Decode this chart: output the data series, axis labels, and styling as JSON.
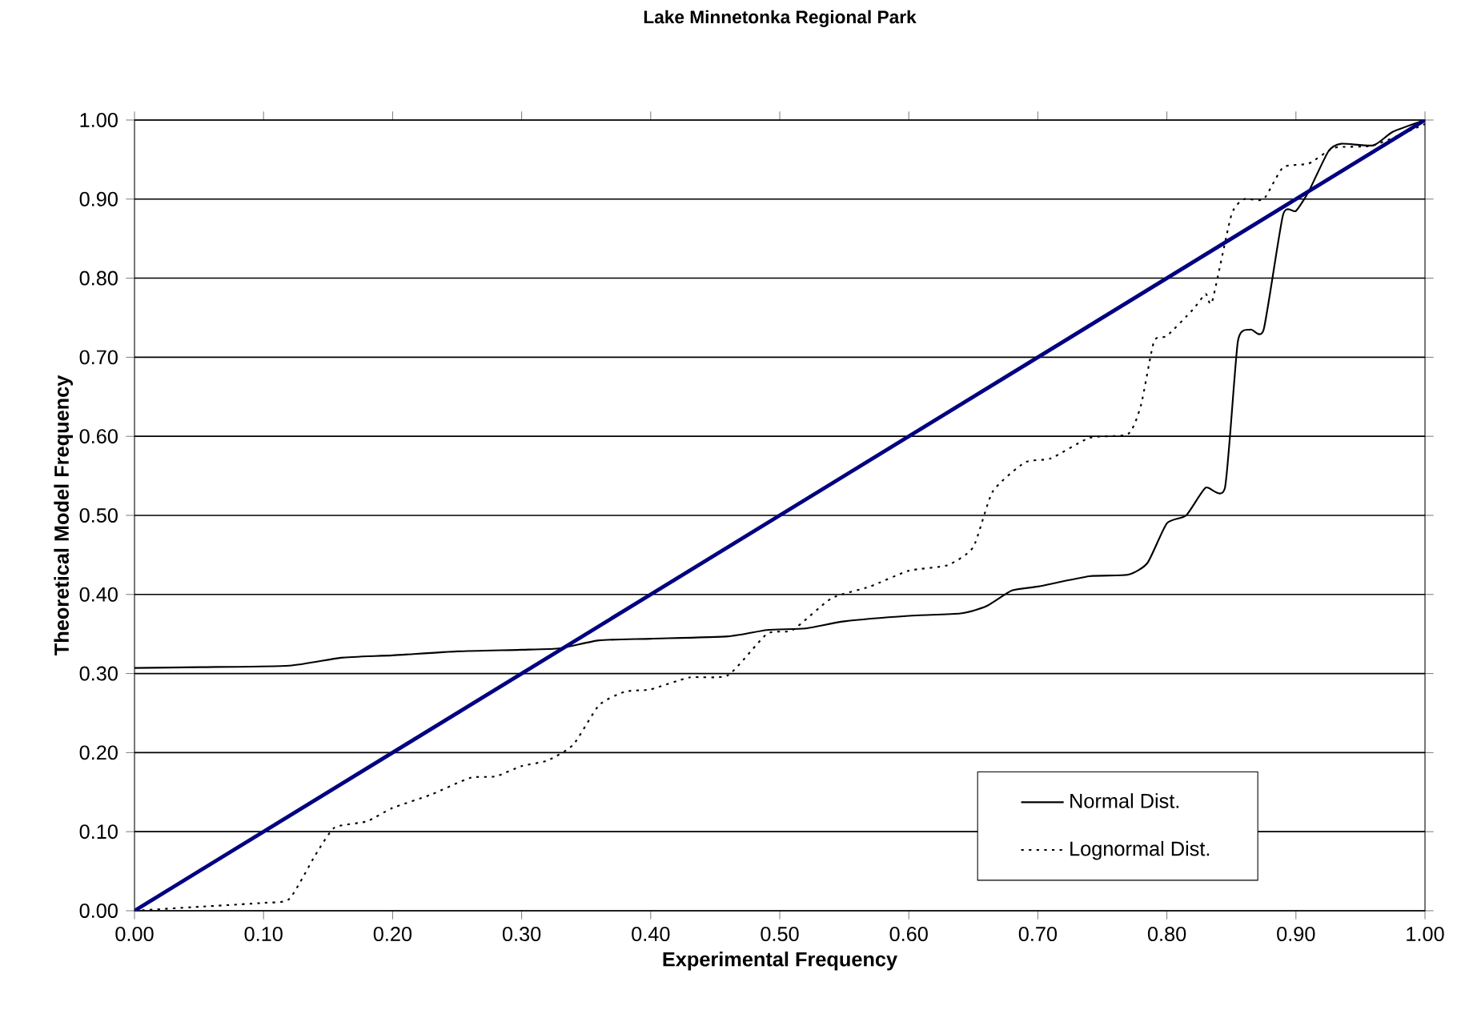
{
  "chart_data": {
    "type": "line",
    "title": "Lake Minnetonka Regional Park",
    "xlabel": "Experimental Frequency",
    "ylabel": "Theoretical Model Frequency",
    "xlim": [
      0,
      1
    ],
    "ylim": [
      0,
      1
    ],
    "xticks": [
      {
        "value": 0,
        "label": "0.00"
      },
      {
        "value": 0.1,
        "label": "0.10"
      },
      {
        "value": 0.2,
        "label": "0.20"
      },
      {
        "value": 0.3,
        "label": "0.30"
      },
      {
        "value": 0.4,
        "label": "0.40"
      },
      {
        "value": 0.5,
        "label": "0.50"
      },
      {
        "value": 0.6,
        "label": "0.60"
      },
      {
        "value": 0.7,
        "label": "0.70"
      },
      {
        "value": 0.8,
        "label": "0.80"
      },
      {
        "value": 0.9,
        "label": "0.90"
      },
      {
        "value": 1,
        "label": "1.00"
      }
    ],
    "yticks": [
      {
        "value": 0,
        "label": "0.00"
      },
      {
        "value": 0.1,
        "label": "0.10"
      },
      {
        "value": 0.2,
        "label": "0.20"
      },
      {
        "value": 0.3,
        "label": "0.30"
      },
      {
        "value": 0.4,
        "label": "0.40"
      },
      {
        "value": 0.5,
        "label": "0.50"
      },
      {
        "value": 0.6,
        "label": "0.60"
      },
      {
        "value": 0.7,
        "label": "0.70"
      },
      {
        "value": 0.8,
        "label": "0.80"
      },
      {
        "value": 0.9,
        "label": "0.90"
      },
      {
        "value": 1,
        "label": "1.00"
      }
    ],
    "grid": "y",
    "legend": "bottom right",
    "marker": "none",
    "series": [
      {
        "name": "Normal Dist.",
        "color": "#000000",
        "line_style": "solid",
        "x": [
          0,
          0.05,
          0.12,
          0.16,
          0.2,
          0.25,
          0.3,
          0.33,
          0.36,
          0.4,
          0.46,
          0.49,
          0.52,
          0.55,
          0.6,
          0.64,
          0.66,
          0.68,
          0.7,
          0.74,
          0.77,
          0.785,
          0.8,
          0.815,
          0.83,
          0.845,
          0.855,
          0.865,
          0.875,
          0.89,
          0.9,
          0.91,
          0.925,
          0.935,
          0.96,
          0.975,
          1
        ],
        "values": [
          0.307,
          0.308,
          0.31,
          0.32,
          0.323,
          0.328,
          0.33,
          0.332,
          0.342,
          0.344,
          0.347,
          0.355,
          0.357,
          0.366,
          0.373,
          0.376,
          0.385,
          0.405,
          0.41,
          0.423,
          0.425,
          0.44,
          0.49,
          0.5,
          0.535,
          0.535,
          0.72,
          0.735,
          0.735,
          0.88,
          0.885,
          0.91,
          0.96,
          0.97,
          0.968,
          0.985,
          1
        ]
      },
      {
        "name": "Lognormal Dist.",
        "color": "#000000",
        "line_style": "dotted",
        "x": [
          0,
          0.05,
          0.1,
          0.12,
          0.14,
          0.155,
          0.18,
          0.2,
          0.23,
          0.26,
          0.28,
          0.3,
          0.32,
          0.34,
          0.36,
          0.38,
          0.4,
          0.43,
          0.46,
          0.49,
          0.51,
          0.54,
          0.57,
          0.6,
          0.63,
          0.65,
          0.665,
          0.69,
          0.71,
          0.74,
          0.77,
          0.78,
          0.79,
          0.8,
          0.82,
          0.83,
          0.835,
          0.85,
          0.86,
          0.875,
          0.89,
          0.91,
          0.93,
          0.96,
          1
        ],
        "values": [
          0,
          0.005,
          0.01,
          0.015,
          0.07,
          0.105,
          0.113,
          0.13,
          0.147,
          0.168,
          0.17,
          0.183,
          0.19,
          0.21,
          0.26,
          0.277,
          0.28,
          0.295,
          0.298,
          0.35,
          0.355,
          0.395,
          0.41,
          0.43,
          0.437,
          0.46,
          0.53,
          0.567,
          0.572,
          0.598,
          0.603,
          0.64,
          0.72,
          0.727,
          0.76,
          0.78,
          0.77,
          0.88,
          0.9,
          0.9,
          0.94,
          0.945,
          0.965,
          0.968,
          0.995
        ]
      },
      {
        "color": "#000080",
        "line_style": "solid",
        "x": [
          0,
          1
        ],
        "values": [
          0,
          1
        ]
      }
    ]
  }
}
